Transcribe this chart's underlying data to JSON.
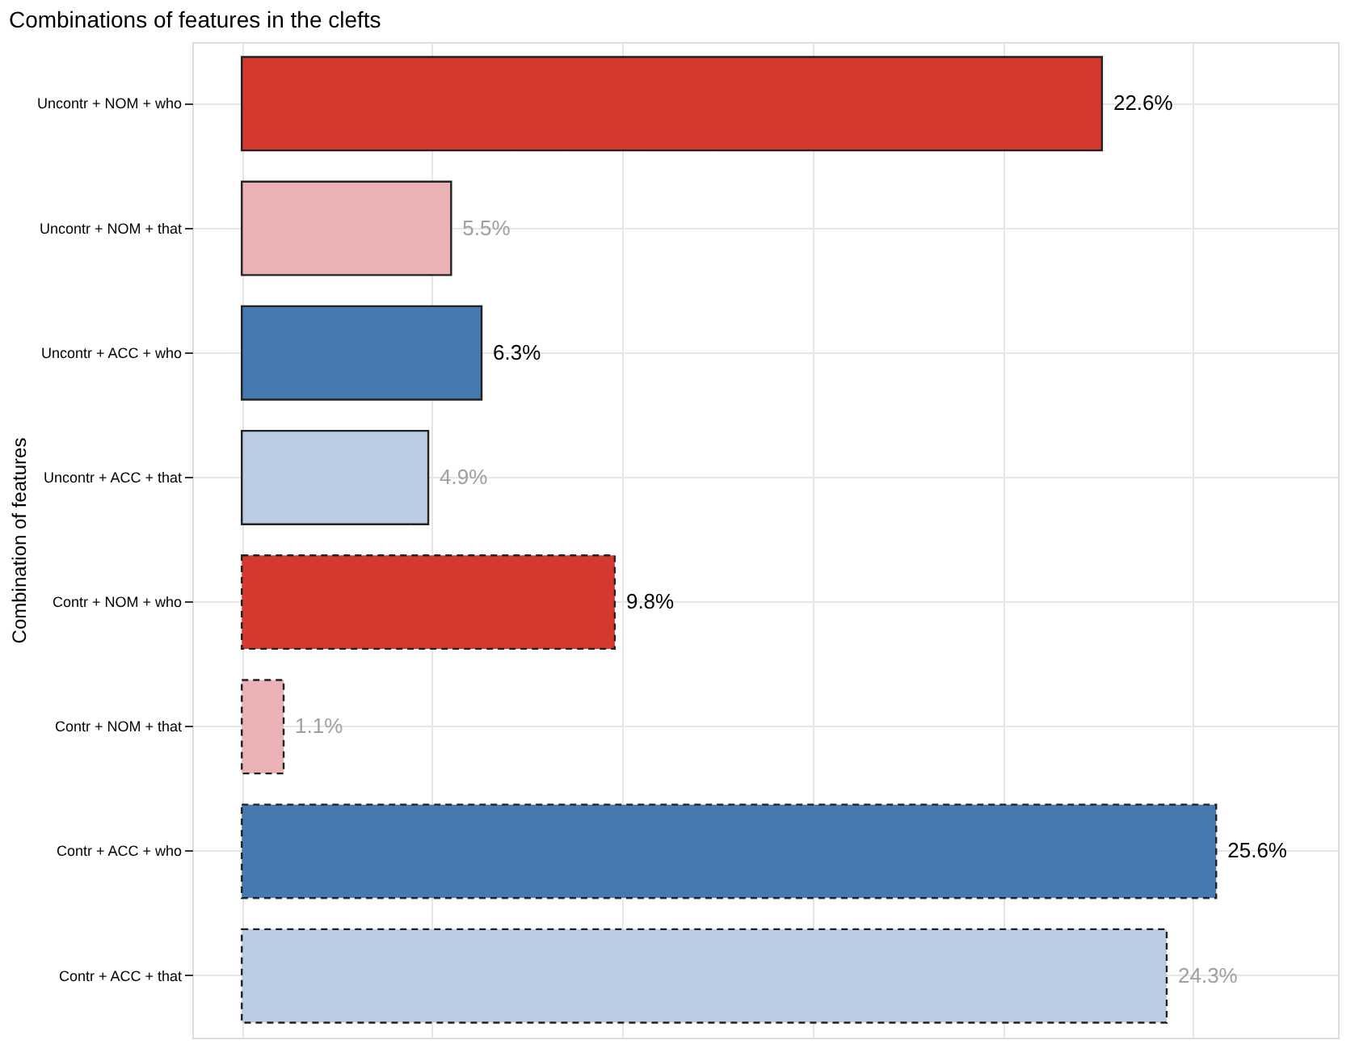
{
  "chart_data": {
    "type": "bar",
    "orientation": "horizontal",
    "title": "Combinations of features in the clefts",
    "ylabel": "Combination of features",
    "categories": [
      "Uncontr + NOM + who",
      "Uncontr + NOM + that",
      "Uncontr + ACC + who",
      "Uncontr + ACC + that",
      "Contr + NOM + who",
      "Contr + NOM + that",
      "Contr + ACC + who",
      "Contr + ACC + that"
    ],
    "series": [
      {
        "values": [
          22.6,
          5.5,
          6.3,
          4.9,
          null,
          null,
          null,
          null
        ],
        "colors": [
          "#d3392f",
          "#eab2b5",
          "#4679b0",
          "#bacde3",
          null,
          null,
          null,
          null
        ],
        "line_style": "solid",
        "value_labels": [
          "22.6%",
          "5.5%",
          "6.3%",
          "4.9%",
          null,
          null,
          null,
          null
        ]
      },
      {
        "values": [
          null,
          null,
          null,
          null,
          9.8,
          1.1,
          25.6,
          24.3
        ],
        "colors": [
          null,
          null,
          null,
          null,
          "#d3392f",
          "#eab2b5",
          "#4679b0",
          "#bacde3"
        ],
        "line_style": "dashed",
        "value_labels": [
          null,
          null,
          null,
          null,
          "9.8%",
          "1.1%",
          "25.6%",
          "24.3%"
        ]
      }
    ],
    "xlim": [
      -1.3,
      28.8
    ],
    "xticks": [
      {
        "value": 0,
        "label": null
      },
      {
        "value": 5,
        "label": null
      },
      {
        "value": 10,
        "label": null
      },
      {
        "value": 15,
        "label": null
      },
      {
        "value": 20,
        "label": null
      },
      {
        "value": 25,
        "label": null
      }
    ],
    "tick_labels": "y",
    "grid": true,
    "legend": false
  }
}
